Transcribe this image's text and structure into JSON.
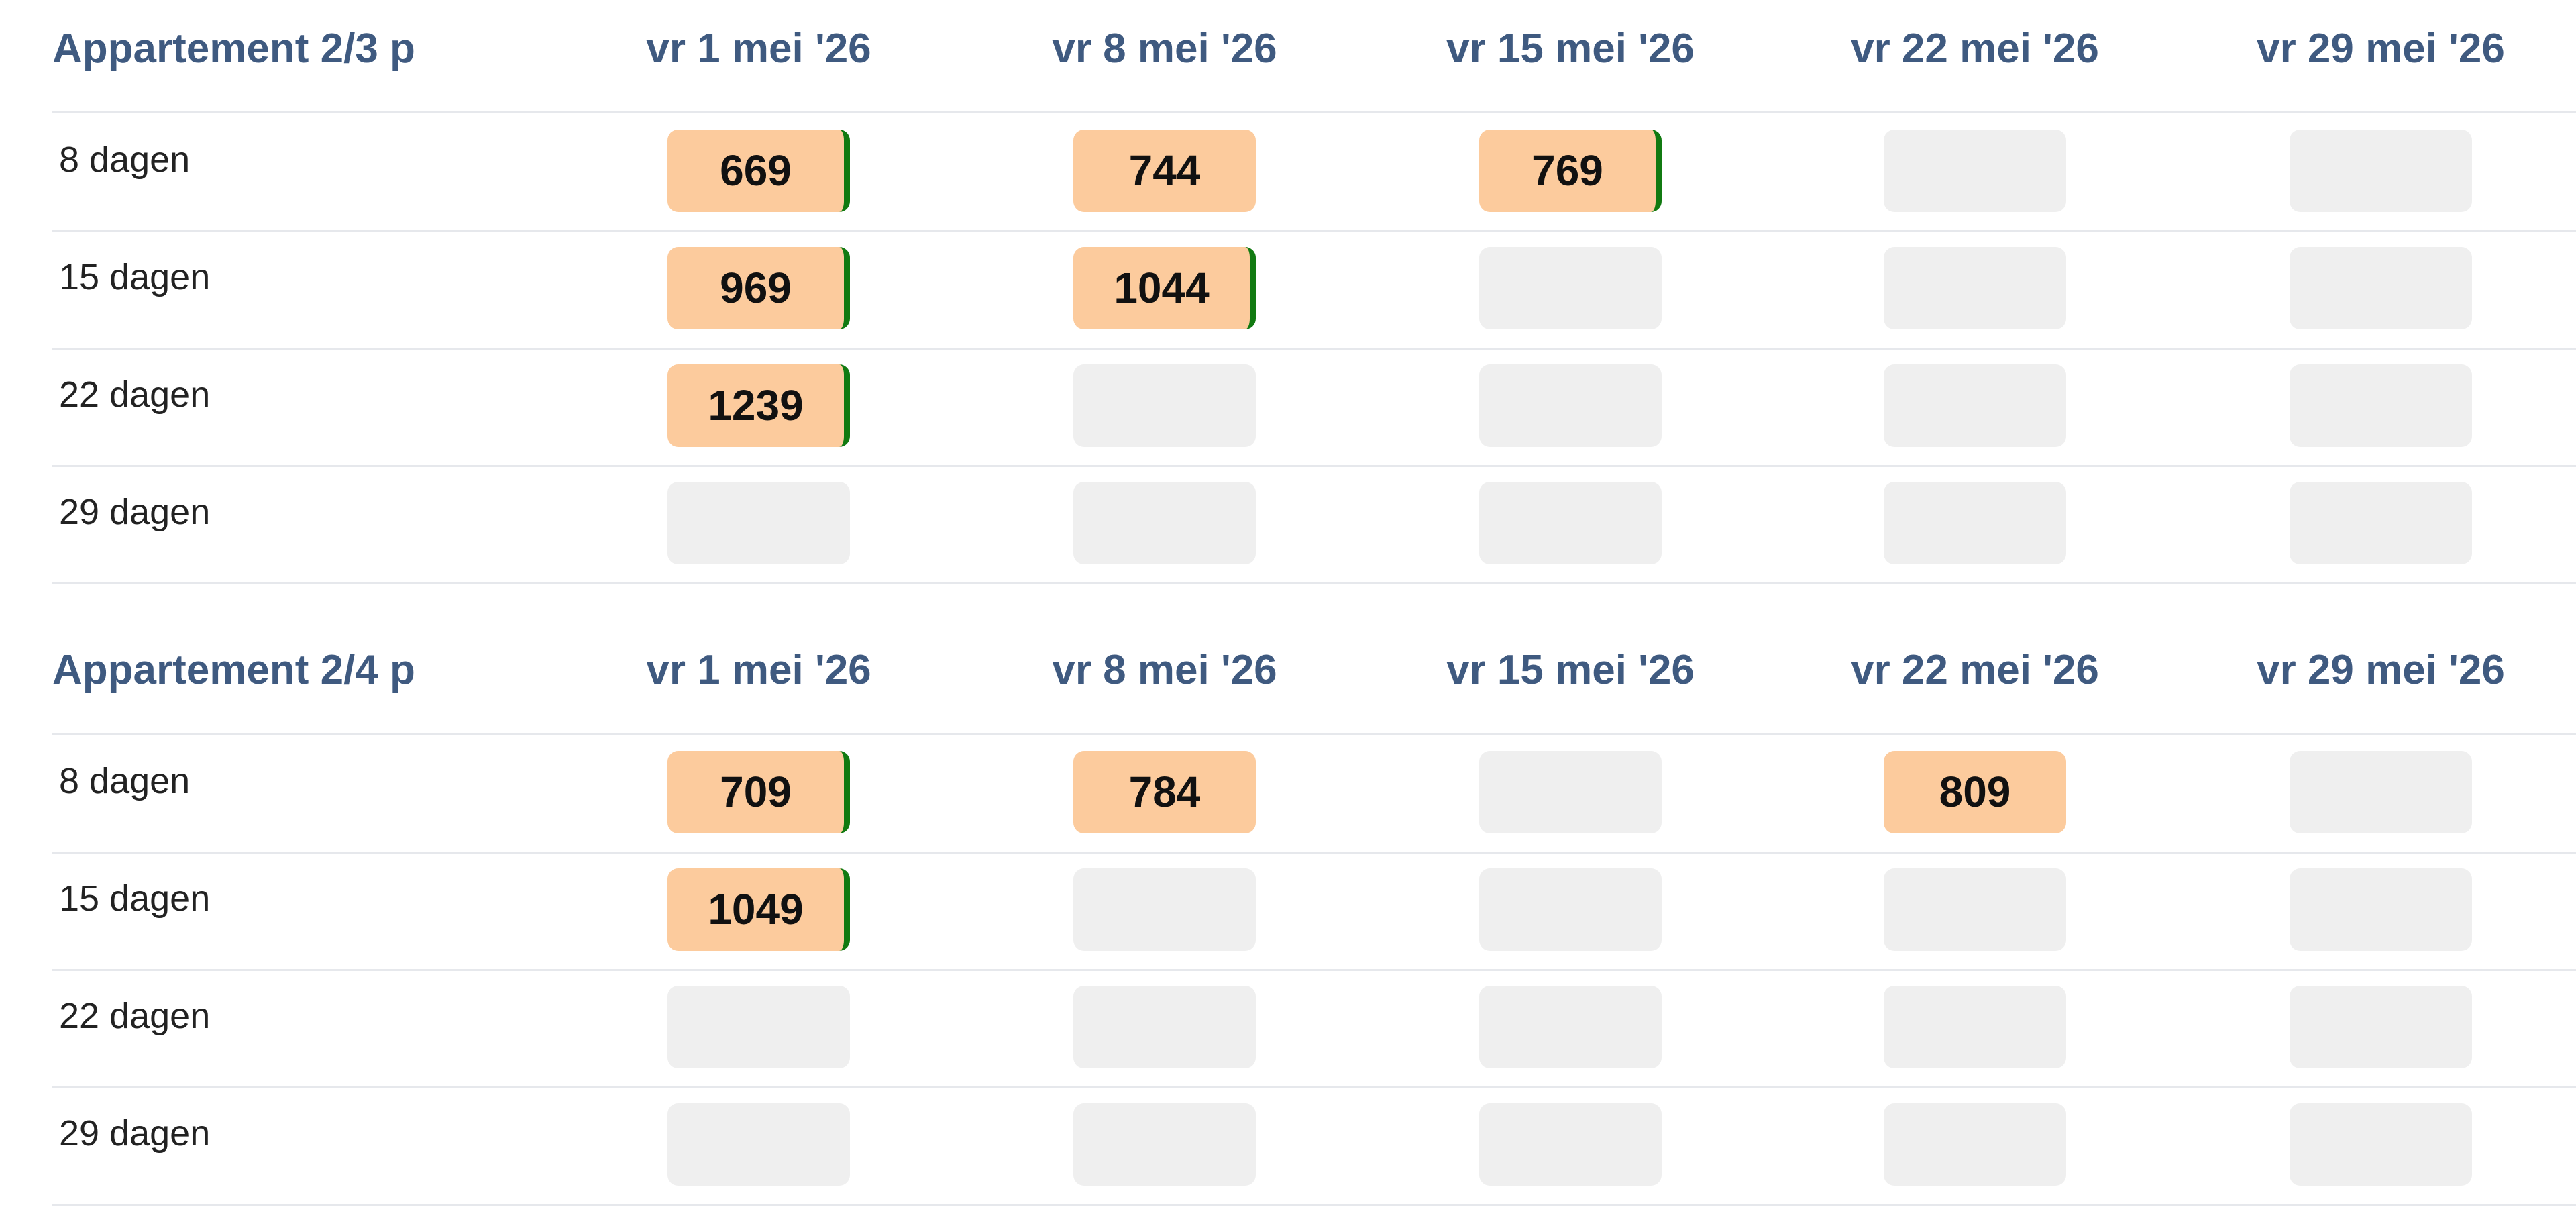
{
  "marker_color": "#117a11",
  "tables": [
    {
      "title": "Appartement 2/3 p",
      "columns": [
        "vr 1 mei '26",
        "vr 8 mei '26",
        "vr 15 mei '26",
        "vr 22 mei '26",
        "vr 29 mei '26"
      ],
      "rows": [
        {
          "label": "8 dagen",
          "cells": [
            {
              "value": 669,
              "marker": true
            },
            {
              "value": 744,
              "marker": false
            },
            {
              "value": 769,
              "marker": true
            },
            null,
            null
          ]
        },
        {
          "label": "15 dagen",
          "cells": [
            {
              "value": 969,
              "marker": true
            },
            {
              "value": 1044,
              "marker": true
            },
            null,
            null,
            null
          ]
        },
        {
          "label": "22 dagen",
          "cells": [
            {
              "value": 1239,
              "marker": true
            },
            null,
            null,
            null,
            null
          ]
        },
        {
          "label": "29 dagen",
          "cells": [
            null,
            null,
            null,
            null,
            null
          ]
        }
      ]
    },
    {
      "title": "Appartement 2/4 p",
      "columns": [
        "vr 1 mei '26",
        "vr 8 mei '26",
        "vr 15 mei '26",
        "vr 22 mei '26",
        "vr 29 mei '26"
      ],
      "rows": [
        {
          "label": "8 dagen",
          "cells": [
            {
              "value": 709,
              "marker": true
            },
            {
              "value": 784,
              "marker": false
            },
            null,
            {
              "value": 809,
              "marker": false
            },
            null
          ]
        },
        {
          "label": "15 dagen",
          "cells": [
            {
              "value": 1049,
              "marker": true
            },
            null,
            null,
            null,
            null
          ]
        },
        {
          "label": "22 dagen",
          "cells": [
            null,
            null,
            null,
            null,
            null
          ]
        },
        {
          "label": "29 dagen",
          "cells": [
            null,
            null,
            null,
            null,
            null
          ]
        }
      ]
    }
  ]
}
